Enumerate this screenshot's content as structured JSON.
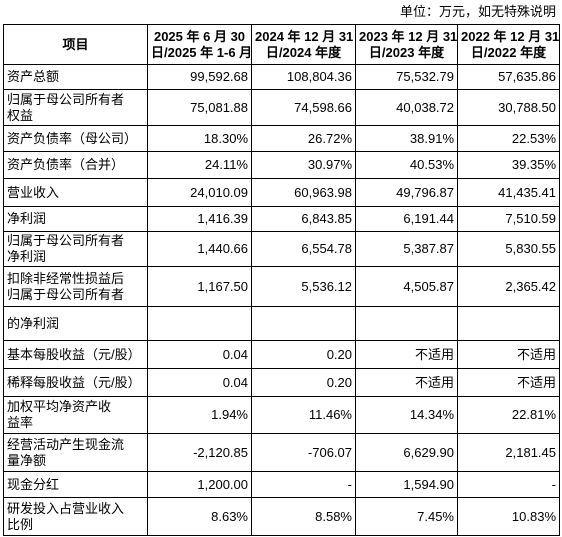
{
  "unit_note": "单位：万元，如无特殊说明",
  "table": {
    "header": [
      [
        "项目"
      ],
      [
        "2025 年 6 月 30",
        "日/2025 年 1-6 月"
      ],
      [
        "2024 年 12 月 31",
        "日/2024 年度"
      ],
      [
        "2023 年 12 月 31",
        "日/2023 年度"
      ],
      [
        "2022 年 12 月 31",
        "日/2022 年度"
      ]
    ],
    "rows": [
      {
        "label": [
          "资产总额"
        ],
        "values": [
          "99,592.68",
          "108,804.36",
          "75,532.79",
          "57,635.86"
        ]
      },
      {
        "label": [
          "归属于母公司所有者",
          "权益"
        ],
        "values": [
          "75,081.88",
          "74,598.66",
          "40,038.72",
          "30,788.50"
        ]
      },
      {
        "label": [
          "资产负债率（母公司）"
        ],
        "values": [
          "18.30%",
          "26.72%",
          "38.91%",
          "22.53%"
        ]
      },
      {
        "label": [
          "资产负债率（合并）"
        ],
        "values": [
          "24.11%",
          "30.97%",
          "40.53%",
          "39.35%"
        ]
      },
      {
        "label": [
          "营业收入"
        ],
        "values": [
          "24,010.09",
          "60,963.98",
          "49,796.87",
          "41,435.41"
        ]
      },
      {
        "label": [
          "净利润"
        ],
        "values": [
          "1,416.39",
          "6,843.85",
          "6,191.44",
          "7,510.59"
        ]
      },
      {
        "label": [
          "归属于母公司所有者",
          "净利润"
        ],
        "values": [
          "1,440.66",
          "6,554.78",
          "5,387.87",
          "5,830.55"
        ]
      },
      {
        "label": [
          "扣除非经常性损益后",
          "归属于母公司所有者"
        ],
        "values": [
          "1,167.50",
          "5,536.12",
          "4,505.87",
          "2,365.42"
        ]
      },
      {
        "label": [
          "的净利润"
        ],
        "values": []
      },
      {
        "label": [
          "基本每股收益（元/股）"
        ],
        "values": [
          "0.04",
          "0.20",
          "不适用",
          "不适用"
        ]
      },
      {
        "label": [
          "稀释每股收益（元/股）"
        ],
        "values": [
          "0.04",
          "0.20",
          "不适用",
          "不适用"
        ]
      },
      {
        "label": [
          "加权平均净资产收",
          "益率"
        ],
        "values": [
          "1.94%",
          "11.46%",
          "14.34%",
          "22.81%"
        ]
      },
      {
        "label": [
          "经营活动产生现金流",
          "量净额"
        ],
        "values": [
          "-2,120.85",
          "-706.07",
          "6,629.90",
          "2,181.45"
        ]
      },
      {
        "label": [
          "现金分红"
        ],
        "values": [
          "1,200.00",
          "-",
          "1,594.90",
          "-"
        ]
      },
      {
        "label": [
          "研发投入占营业收入",
          "比例"
        ],
        "values": [
          "8.63%",
          "8.58%",
          "7.45%",
          "10.83%"
        ]
      }
    ]
  }
}
